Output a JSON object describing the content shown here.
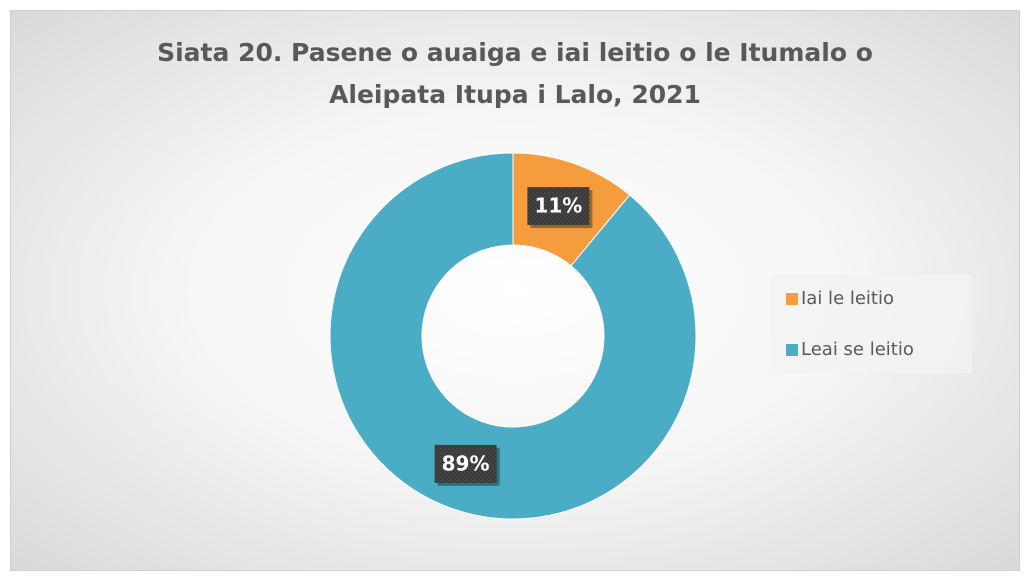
{
  "chart_data": {
    "type": "donut",
    "title": "Siata 20. Pasene o auaiga e iai leitio o le Itumalo o Aleipata Itupa i Lalo, 2021",
    "categories": [
      "Iai le leitio",
      "Leai se leitio"
    ],
    "values": [
      11,
      89
    ],
    "value_labels": [
      "11%",
      "89%"
    ],
    "colors": [
      "#f59d3e",
      "#4bacc6"
    ],
    "legend": "right"
  }
}
